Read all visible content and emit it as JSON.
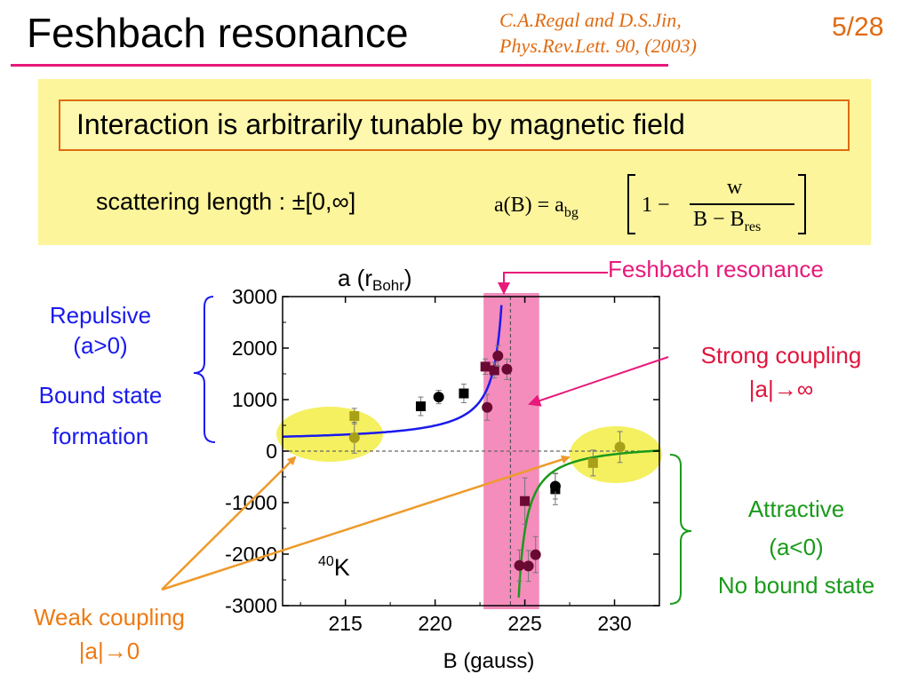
{
  "slide": {
    "title": "Feshbach resonance",
    "citation_line1": "C.A.Regal and D.S.Jin,",
    "citation_line2": "Phys.Rev.Lett. 90, (2003)",
    "page": "5/28"
  },
  "info": {
    "headline": "Interaction is arbitrarily tunable by magnetic field",
    "scattering_label": "scattering length : ±[0,∞]",
    "formula": {
      "lhs": "a(B) = a",
      "lhs_sub": "bg",
      "one_minus": "1 −",
      "numerator": "w",
      "denominator": "B − B",
      "denominator_sub": "res"
    }
  },
  "annotations": {
    "repulsive_1": "Repulsive",
    "repulsive_2": "(a>0)",
    "repulsive_3": "Bound state",
    "repulsive_4": "formation",
    "attractive_1": "Attractive",
    "attractive_2": "(a<0)",
    "attractive_3": "No bound state",
    "weak_1": "Weak coupling",
    "weak_2": "|a|→0",
    "strong_1": "Strong coupling",
    "strong_2": "|a|→∞",
    "feshbach": "Feshbach resonance",
    "species_sup": "40",
    "species": "K"
  },
  "colors": {
    "title_rule": "#e8197a",
    "accent_orange": "#e06a10",
    "box_bg": "#fcf59b",
    "blue": "#1a1aee",
    "green": "#1a9a1a",
    "pink_band": "#f48cbc",
    "highlight": "#f4f060"
  },
  "chart_data": {
    "type": "scatter",
    "xlabel": "B (gauss)",
    "ylabel": "a (r",
    "ylabel_sub": "Bohr",
    "ylabel_end": ")",
    "xlim": [
      211.5,
      232.5
    ],
    "ylim": [
      -3000,
      3000
    ],
    "xticks": [
      215,
      220,
      225,
      230
    ],
    "yticks": [
      -3000,
      -2000,
      -1000,
      0,
      1000,
      2000,
      3000
    ],
    "resonance_B": 224.2,
    "resonance_band": [
      222.7,
      225.8
    ],
    "series": [
      {
        "marker": "square",
        "points": [
          {
            "x": 215.5,
            "y": 680,
            "err": 150
          },
          {
            "x": 219.2,
            "y": 870,
            "err": 180
          },
          {
            "x": 221.6,
            "y": 1120,
            "err": 180
          },
          {
            "x": 222.8,
            "y": 1640,
            "err": 150
          },
          {
            "x": 223.3,
            "y": 1570,
            "err": 150
          },
          {
            "x": 225.0,
            "y": -970,
            "err": 450
          },
          {
            "x": 226.7,
            "y": -740,
            "err": 300
          },
          {
            "x": 228.8,
            "y": -230,
            "err": 250
          }
        ]
      },
      {
        "marker": "circle",
        "points": [
          {
            "x": 215.5,
            "y": 260,
            "err": 300
          },
          {
            "x": 220.2,
            "y": 1050,
            "err": 130
          },
          {
            "x": 222.9,
            "y": 850,
            "err": 250
          },
          {
            "x": 223.5,
            "y": 1850,
            "err": 200
          },
          {
            "x": 224.0,
            "y": 1590,
            "err": 200
          },
          {
            "x": 224.7,
            "y": -2220,
            "err": 300
          },
          {
            "x": 225.2,
            "y": -2230,
            "err": 300
          },
          {
            "x": 225.6,
            "y": -2010,
            "err": 350
          },
          {
            "x": 226.7,
            "y": -680,
            "err": 250
          },
          {
            "x": 230.3,
            "y": 80,
            "err": 300
          }
        ]
      }
    ],
    "fit": {
      "a_bg": 174,
      "w": 7.8,
      "B_res": 224.21
    }
  }
}
